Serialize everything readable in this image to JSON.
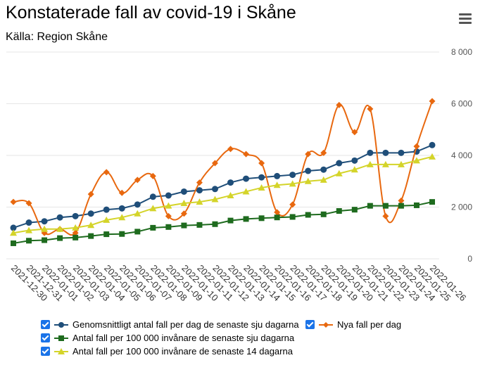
{
  "header": {
    "title": "Konstaterade fall av covid-19 i Skåne",
    "subtitle": "Källa: Region Skåne",
    "menu_icon": "hamburger-menu-icon"
  },
  "chart_data": {
    "type": "line",
    "x": [
      "2021-12-30",
      "2021-12-31",
      "2022-01-01",
      "2022-01-02",
      "2022-01-03",
      "2022-01-04",
      "2022-01-05",
      "2022-01-06",
      "2022-01-07",
      "2022-01-08",
      "2022-01-09",
      "2022-01-10",
      "2022-01-11",
      "2022-01-12",
      "2022-01-13",
      "2022-01-14",
      "2022-01-15",
      "2022-01-16",
      "2022-01-17",
      "2022-01-18",
      "2022-01-19",
      "2022-01-20",
      "2022-01-21",
      "2022-01-22",
      "2022-01-23",
      "2022-01-24",
      "2022-01-25",
      "2022-01-26"
    ],
    "ylim": [
      0,
      8000
    ],
    "yticks": [
      0,
      2000,
      4000,
      6000,
      8000
    ],
    "ytick_labels": [
      "0",
      "2 000",
      "4 000",
      "6 000",
      "8 000"
    ],
    "grid": true,
    "legend_position": "bottom",
    "series": [
      {
        "name": "Genomsnittligt antal fall per dag de senaste sju dagarna",
        "color": "#1f4e79",
        "marker": "circle",
        "values": [
          1200,
          1400,
          1450,
          1600,
          1650,
          1750,
          1900,
          1950,
          2100,
          2400,
          2450,
          2600,
          2650,
          2700,
          2950,
          3100,
          3150,
          3200,
          3250,
          3400,
          3450,
          3700,
          3800,
          4100,
          4100,
          4100,
          4150,
          4400
        ]
      },
      {
        "name": "Nya fall per dag",
        "color": "#e8680f",
        "marker": "diamond",
        "values": [
          2200,
          2150,
          1000,
          1150,
          1000,
          2500,
          3350,
          2550,
          3050,
          3200,
          1650,
          1750,
          2950,
          3700,
          4250,
          4050,
          3700,
          1800,
          2100,
          4050,
          4100,
          5950,
          4900,
          5800,
          1650,
          2250,
          4350,
          6100
        ]
      },
      {
        "name": "Antal fall per 100 000 invånare de senaste sju dagarna",
        "color": "#1e6b1e",
        "marker": "square",
        "values": [
          600,
          700,
          720,
          800,
          820,
          880,
          950,
          960,
          1050,
          1200,
          1230,
          1290,
          1310,
          1340,
          1480,
          1540,
          1570,
          1600,
          1620,
          1700,
          1720,
          1850,
          1900,
          2050,
          2050,
          2050,
          2070,
          2200
        ]
      },
      {
        "name": "Antal fall per 100 000 invånare de senaste 14 dagarna",
        "color": "#d4d42a",
        "marker": "triangle",
        "values": [
          1000,
          1100,
          1150,
          1150,
          1200,
          1300,
          1500,
          1600,
          1750,
          1950,
          2050,
          2150,
          2200,
          2300,
          2450,
          2600,
          2750,
          2850,
          2900,
          3000,
          3050,
          3300,
          3450,
          3650,
          3650,
          3650,
          3800,
          3950
        ]
      }
    ]
  },
  "legend": {
    "items": [
      {
        "label": "Genomsnittligt antal fall per dag de senaste sju dagarna",
        "checked": true,
        "icon": "circle-marker"
      },
      {
        "label": "Nya fall per dag",
        "checked": true,
        "icon": "diamond-marker"
      },
      {
        "label": "Antal fall per 100 000 invånare de senaste sju dagarna",
        "checked": true,
        "icon": "square-marker"
      },
      {
        "label": "Antal fall per 100 000 invånare de senaste 14 dagarna",
        "checked": true,
        "icon": "triangle-marker"
      }
    ]
  }
}
